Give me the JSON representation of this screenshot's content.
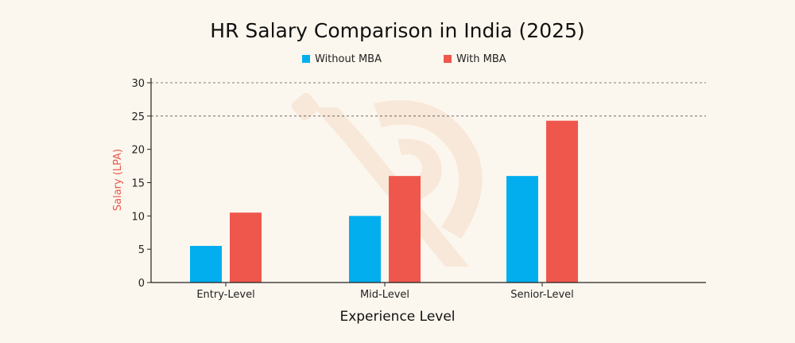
{
  "colors": {
    "background": "#fcf7ee",
    "without_mba": "#03aeef",
    "with_mba": "#ef574d",
    "ylabel": "#e9584a",
    "watermark": "#f3dcc9"
  },
  "chart_data": {
    "type": "bar",
    "title": "HR Salary Comparison in India (2025)",
    "xlabel": "Experience Level",
    "ylabel": "Salary (LPA)",
    "categories": [
      "Entry-Level",
      "Mid-Level",
      "Senior-Level"
    ],
    "series": [
      {
        "name": "Without MBA",
        "values": [
          5.5,
          10,
          16
        ]
      },
      {
        "name": "With MBA",
        "values": [
          10.5,
          16,
          24.3
        ]
      }
    ],
    "ylim": [
      0,
      30
    ],
    "yticks": [
      "0",
      "5",
      "10",
      "15",
      "20",
      "25",
      "30"
    ],
    "grid": {
      "dashed_at": [
        25,
        30
      ]
    },
    "legend": "top-center"
  }
}
